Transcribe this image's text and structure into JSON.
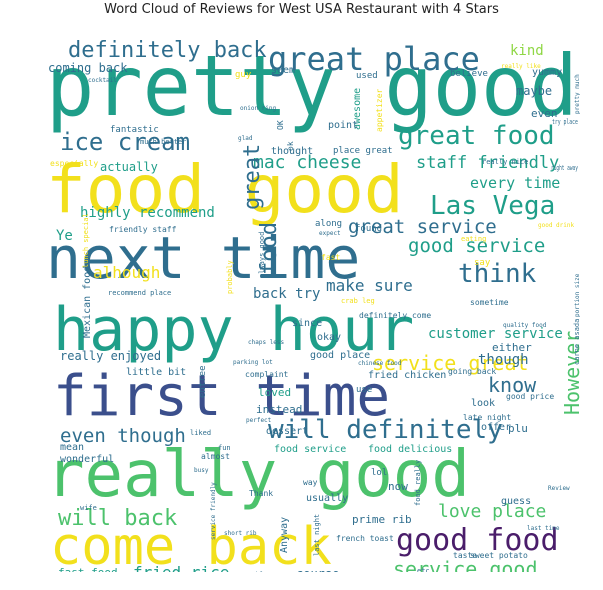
{
  "chart_data": {
    "type": "wordcloud",
    "title": "Word Cloud of Reviews for West USA Restaurant with 4 Stars",
    "colors": {
      "yellow": "#f2e01c",
      "green": "#4cc26c",
      "teal": "#1f9e89",
      "blue": "#2f6e8e",
      "indigo": "#3b4f8c",
      "purple": "#4a1d6a",
      "dark": "#440154",
      "lime": "#8fd744"
    },
    "words": [
      {
        "text": "pretty good",
        "weight": 88,
        "color": "teal"
      },
      {
        "text": "food good",
        "weight": 70,
        "color": "yellow"
      },
      {
        "text": "next time",
        "weight": 62,
        "color": "blue"
      },
      {
        "text": "happy hour",
        "weight": 64,
        "color": "teal"
      },
      {
        "text": "first time",
        "weight": 60,
        "color": "indigo"
      },
      {
        "text": "really good",
        "weight": 66,
        "color": "green"
      },
      {
        "text": "come back",
        "weight": 54,
        "color": "yellow"
      },
      {
        "text": "great place",
        "weight": 34,
        "color": "blue"
      },
      {
        "text": "definitely back",
        "weight": 24,
        "color": "blue"
      },
      {
        "text": "great food",
        "weight": 27,
        "color": "teal"
      },
      {
        "text": "ice cream",
        "weight": 24,
        "color": "blue"
      },
      {
        "text": "Las Vega",
        "weight": 26,
        "color": "teal"
      },
      {
        "text": "mac cheese",
        "weight": 18,
        "color": "teal"
      },
      {
        "text": "staff friendly",
        "weight": 17,
        "color": "teal"
      },
      {
        "text": "great service",
        "weight": 19,
        "color": "blue"
      },
      {
        "text": "good service",
        "weight": 19,
        "color": "teal"
      },
      {
        "text": "think",
        "weight": 26,
        "color": "blue"
      },
      {
        "text": "will definitely",
        "weight": 27,
        "color": "blue"
      },
      {
        "text": "service great",
        "weight": 20,
        "color": "yellow"
      },
      {
        "text": "good food",
        "weight": 30,
        "color": "purple"
      },
      {
        "text": "will back",
        "weight": 22,
        "color": "green"
      },
      {
        "text": "love place",
        "weight": 18,
        "color": "green"
      },
      {
        "text": "service good",
        "weight": 20,
        "color": "green"
      },
      {
        "text": "even though",
        "weight": 19,
        "color": "blue"
      },
      {
        "text": "fried rice",
        "weight": 16,
        "color": "teal"
      },
      {
        "text": "make sure",
        "weight": 16,
        "color": "blue"
      },
      {
        "text": "highly recommend",
        "weight": 14,
        "color": "teal"
      },
      {
        "text": "know",
        "weight": 20,
        "color": "blue"
      },
      {
        "text": "customer service",
        "weight": 14,
        "color": "teal"
      },
      {
        "text": "However",
        "weight": 20,
        "color": "green"
      },
      {
        "text": "every time",
        "weight": 15,
        "color": "teal"
      },
      {
        "text": "great",
        "weight": 22,
        "color": "blue"
      },
      {
        "text": "food",
        "weight": 22,
        "color": "blue"
      },
      {
        "text": "alhough",
        "weight": 16,
        "color": "yellow"
      },
      {
        "text": "back try",
        "weight": 14,
        "color": "blue"
      },
      {
        "text": "though",
        "weight": 14,
        "color": "blue"
      },
      {
        "text": "coming back",
        "weight": 12,
        "color": "blue"
      },
      {
        "text": "kind",
        "weight": 14,
        "color": "lime"
      },
      {
        "text": "maybe",
        "weight": 12,
        "color": "blue"
      },
      {
        "text": "really enjoyed",
        "weight": 12,
        "color": "blue"
      },
      {
        "text": "good place",
        "weight": 10,
        "color": "blue"
      },
      {
        "text": "fried chicken",
        "weight": 10,
        "color": "blue"
      },
      {
        "text": "little bit",
        "weight": 10,
        "color": "blue"
      },
      {
        "text": "loved",
        "weight": 11,
        "color": "teal"
      },
      {
        "text": "instead",
        "weight": 11,
        "color": "blue"
      },
      {
        "text": "dessert",
        "weight": 10,
        "color": "blue"
      },
      {
        "text": "food service",
        "weight": 10,
        "color": "teal"
      },
      {
        "text": "food delicious",
        "weight": 10,
        "color": "teal"
      },
      {
        "text": "prime rib",
        "weight": 11,
        "color": "blue"
      },
      {
        "text": "course",
        "weight": 12,
        "color": "blue"
      },
      {
        "text": "fast food",
        "weight": 11,
        "color": "teal"
      },
      {
        "text": "wait staff",
        "weight": 9,
        "color": "blue"
      },
      {
        "text": "guess",
        "weight": 10,
        "color": "blue"
      },
      {
        "text": "yummy",
        "weight": 10,
        "color": "blue"
      },
      {
        "text": "believe",
        "weight": 9,
        "color": "blue"
      },
      {
        "text": "awesome",
        "weight": 10,
        "color": "teal"
      },
      {
        "text": "actually",
        "weight": 12,
        "color": "teal"
      },
      {
        "text": "fantastic",
        "weight": 9,
        "color": "blue"
      },
      {
        "text": "place great",
        "weight": 9,
        "color": "blue"
      },
      {
        "text": "thought",
        "weight": 10,
        "color": "blue"
      },
      {
        "text": "Mexican food",
        "weight": 10,
        "color": "blue"
      },
      {
        "text": "since",
        "weight": 10,
        "color": "blue"
      },
      {
        "text": "okay",
        "weight": 10,
        "color": "blue"
      },
      {
        "text": "either",
        "weight": 11,
        "color": "blue"
      },
      {
        "text": "usually",
        "weight": 10,
        "color": "blue"
      },
      {
        "text": "Anyway",
        "weight": 10,
        "color": "blue"
      },
      {
        "text": "wonderful",
        "weight": 10,
        "color": "blue"
      },
      {
        "text": "mean",
        "weight": 10,
        "color": "blue"
      },
      {
        "text": "Ye",
        "weight": 14,
        "color": "teal"
      },
      {
        "text": "even",
        "weight": 11,
        "color": "blue"
      },
      {
        "text": "seem",
        "weight": 10,
        "color": "blue"
      },
      {
        "text": "point",
        "weight": 10,
        "color": "blue"
      },
      {
        "text": "used",
        "weight": 9,
        "color": "blue"
      },
      {
        "text": "look",
        "weight": 10,
        "color": "blue"
      },
      {
        "text": "offer",
        "weight": 10,
        "color": "blue"
      },
      {
        "text": "plu",
        "weight": 11,
        "color": "blue"
      },
      {
        "text": "now",
        "weight": 11,
        "color": "blue"
      },
      {
        "text": "say",
        "weight": 9,
        "color": "yellow"
      },
      {
        "text": "lol",
        "weight": 9,
        "color": "blue"
      },
      {
        "text": "use",
        "weight": 9,
        "color": "blue"
      },
      {
        "text": "found",
        "weight": 9,
        "color": "blue"
      },
      {
        "text": "along",
        "weight": 9,
        "color": "blue"
      },
      {
        "text": "friendly staff",
        "weight": 8,
        "color": "blue"
      },
      {
        "text": "complaint",
        "weight": 8,
        "color": "blue"
      },
      {
        "text": "going back",
        "weight": 8,
        "color": "blue"
      },
      {
        "text": "good price",
        "weight": 8,
        "color": "blue"
      },
      {
        "text": "late night",
        "weight": 8,
        "color": "blue"
      },
      {
        "text": "sometime",
        "weight": 8,
        "color": "blue"
      },
      {
        "text": "definitely come",
        "weight": 8,
        "color": "blue"
      },
      {
        "text": "service excellent",
        "weight": 8,
        "color": "teal"
      },
      {
        "text": "sweet potato",
        "weight": 8,
        "color": "blue"
      },
      {
        "text": "taste",
        "weight": 8,
        "color": "blue"
      },
      {
        "text": "french toast",
        "weight": 8,
        "color": "blue"
      },
      {
        "text": "Thank",
        "weight": 8,
        "color": "blue"
      },
      {
        "text": "way",
        "weight": 8,
        "color": "blue"
      },
      {
        "text": "guy",
        "weight": 9,
        "color": "yellow"
      },
      {
        "text": "much better",
        "weight": 7,
        "color": "blue"
      },
      {
        "text": "especially",
        "weight": 8,
        "color": "yellow"
      },
      {
        "text": "lunch special",
        "weight": 7,
        "color": "yellow"
      },
      {
        "text": "try place",
        "weight": 7,
        "color": "blue"
      },
      {
        "text": "right away",
        "weight": 7,
        "color": "blue"
      },
      {
        "text": "really nice",
        "weight": 7,
        "color": "blue"
      },
      {
        "text": "carne asada",
        "weight": 7,
        "color": "blue"
      },
      {
        "text": "portion size",
        "weight": 6,
        "color": "blue"
      },
      {
        "text": "last time",
        "weight": 6,
        "color": "blue"
      },
      {
        "text": "short rib",
        "weight": 6,
        "color": "blue"
      },
      {
        "text": "wife",
        "weight": 7,
        "color": "blue"
      },
      {
        "text": "etc",
        "weight": 7,
        "color": "blue"
      },
      {
        "text": "problem",
        "weight": 7,
        "color": "blue"
      },
      {
        "text": "far",
        "weight": 7,
        "color": "blue"
      },
      {
        "text": "appetizer",
        "weight": 8,
        "color": "yellow"
      },
      {
        "text": "probably",
        "weight": 7,
        "color": "yellow"
      },
      {
        "text": "always good",
        "weight": 7,
        "color": "blue"
      },
      {
        "text": "expect",
        "weight": 6,
        "color": "blue"
      },
      {
        "text": "fast",
        "weight": 8,
        "color": "yellow"
      },
      {
        "text": "eating",
        "weight": 7,
        "color": "yellow"
      },
      {
        "text": "entree",
        "weight": 9,
        "color": "blue"
      },
      {
        "text": "almost",
        "weight": 8,
        "color": "blue"
      },
      {
        "text": "liked",
        "weight": 7,
        "color": "blue"
      },
      {
        "text": "food really",
        "weight": 7,
        "color": "blue"
      },
      {
        "text": "last night",
        "weight": 7,
        "color": "blue"
      },
      {
        "text": "definitely recommend",
        "weight": 6,
        "color": "blue"
      },
      {
        "text": "long time",
        "weight": 6,
        "color": "blue"
      },
      {
        "text": "quality food",
        "weight": 6,
        "color": "blue"
      },
      {
        "text": "recommend place",
        "weight": 7,
        "color": "blue"
      },
      {
        "text": "parking lot",
        "weight": 6,
        "color": "blue"
      },
      {
        "text": "chaps less",
        "weight": 6,
        "color": "blue"
      },
      {
        "text": "crab leg",
        "weight": 7,
        "color": "yellow"
      },
      {
        "text": "service friendly",
        "weight": 6,
        "color": "blue"
      },
      {
        "text": "OK",
        "weight": 8,
        "color": "blue"
      },
      {
        "text": "ok",
        "weight": 8,
        "color": "blue"
      },
      {
        "text": "glad",
        "weight": 6,
        "color": "blue"
      },
      {
        "text": "fun",
        "weight": 7,
        "color": "blue"
      },
      {
        "text": "busy",
        "weight": 6,
        "color": "blue"
      },
      {
        "text": "perfect",
        "weight": 6,
        "color": "blue"
      },
      {
        "text": "cocktail",
        "weight": 6,
        "color": "blue"
      },
      {
        "text": "onion ring",
        "weight": 6,
        "color": "blue"
      },
      {
        "text": "pretty much",
        "weight": 6,
        "color": "blue"
      },
      {
        "text": "really like",
        "weight": 6,
        "color": "yellow"
      },
      {
        "text": "good drink",
        "weight": 6,
        "color": "yellow"
      },
      {
        "text": "chinese food",
        "weight": 6,
        "color": "blue"
      },
      {
        "text": "Review",
        "weight": 6,
        "color": "blue"
      }
    ]
  }
}
